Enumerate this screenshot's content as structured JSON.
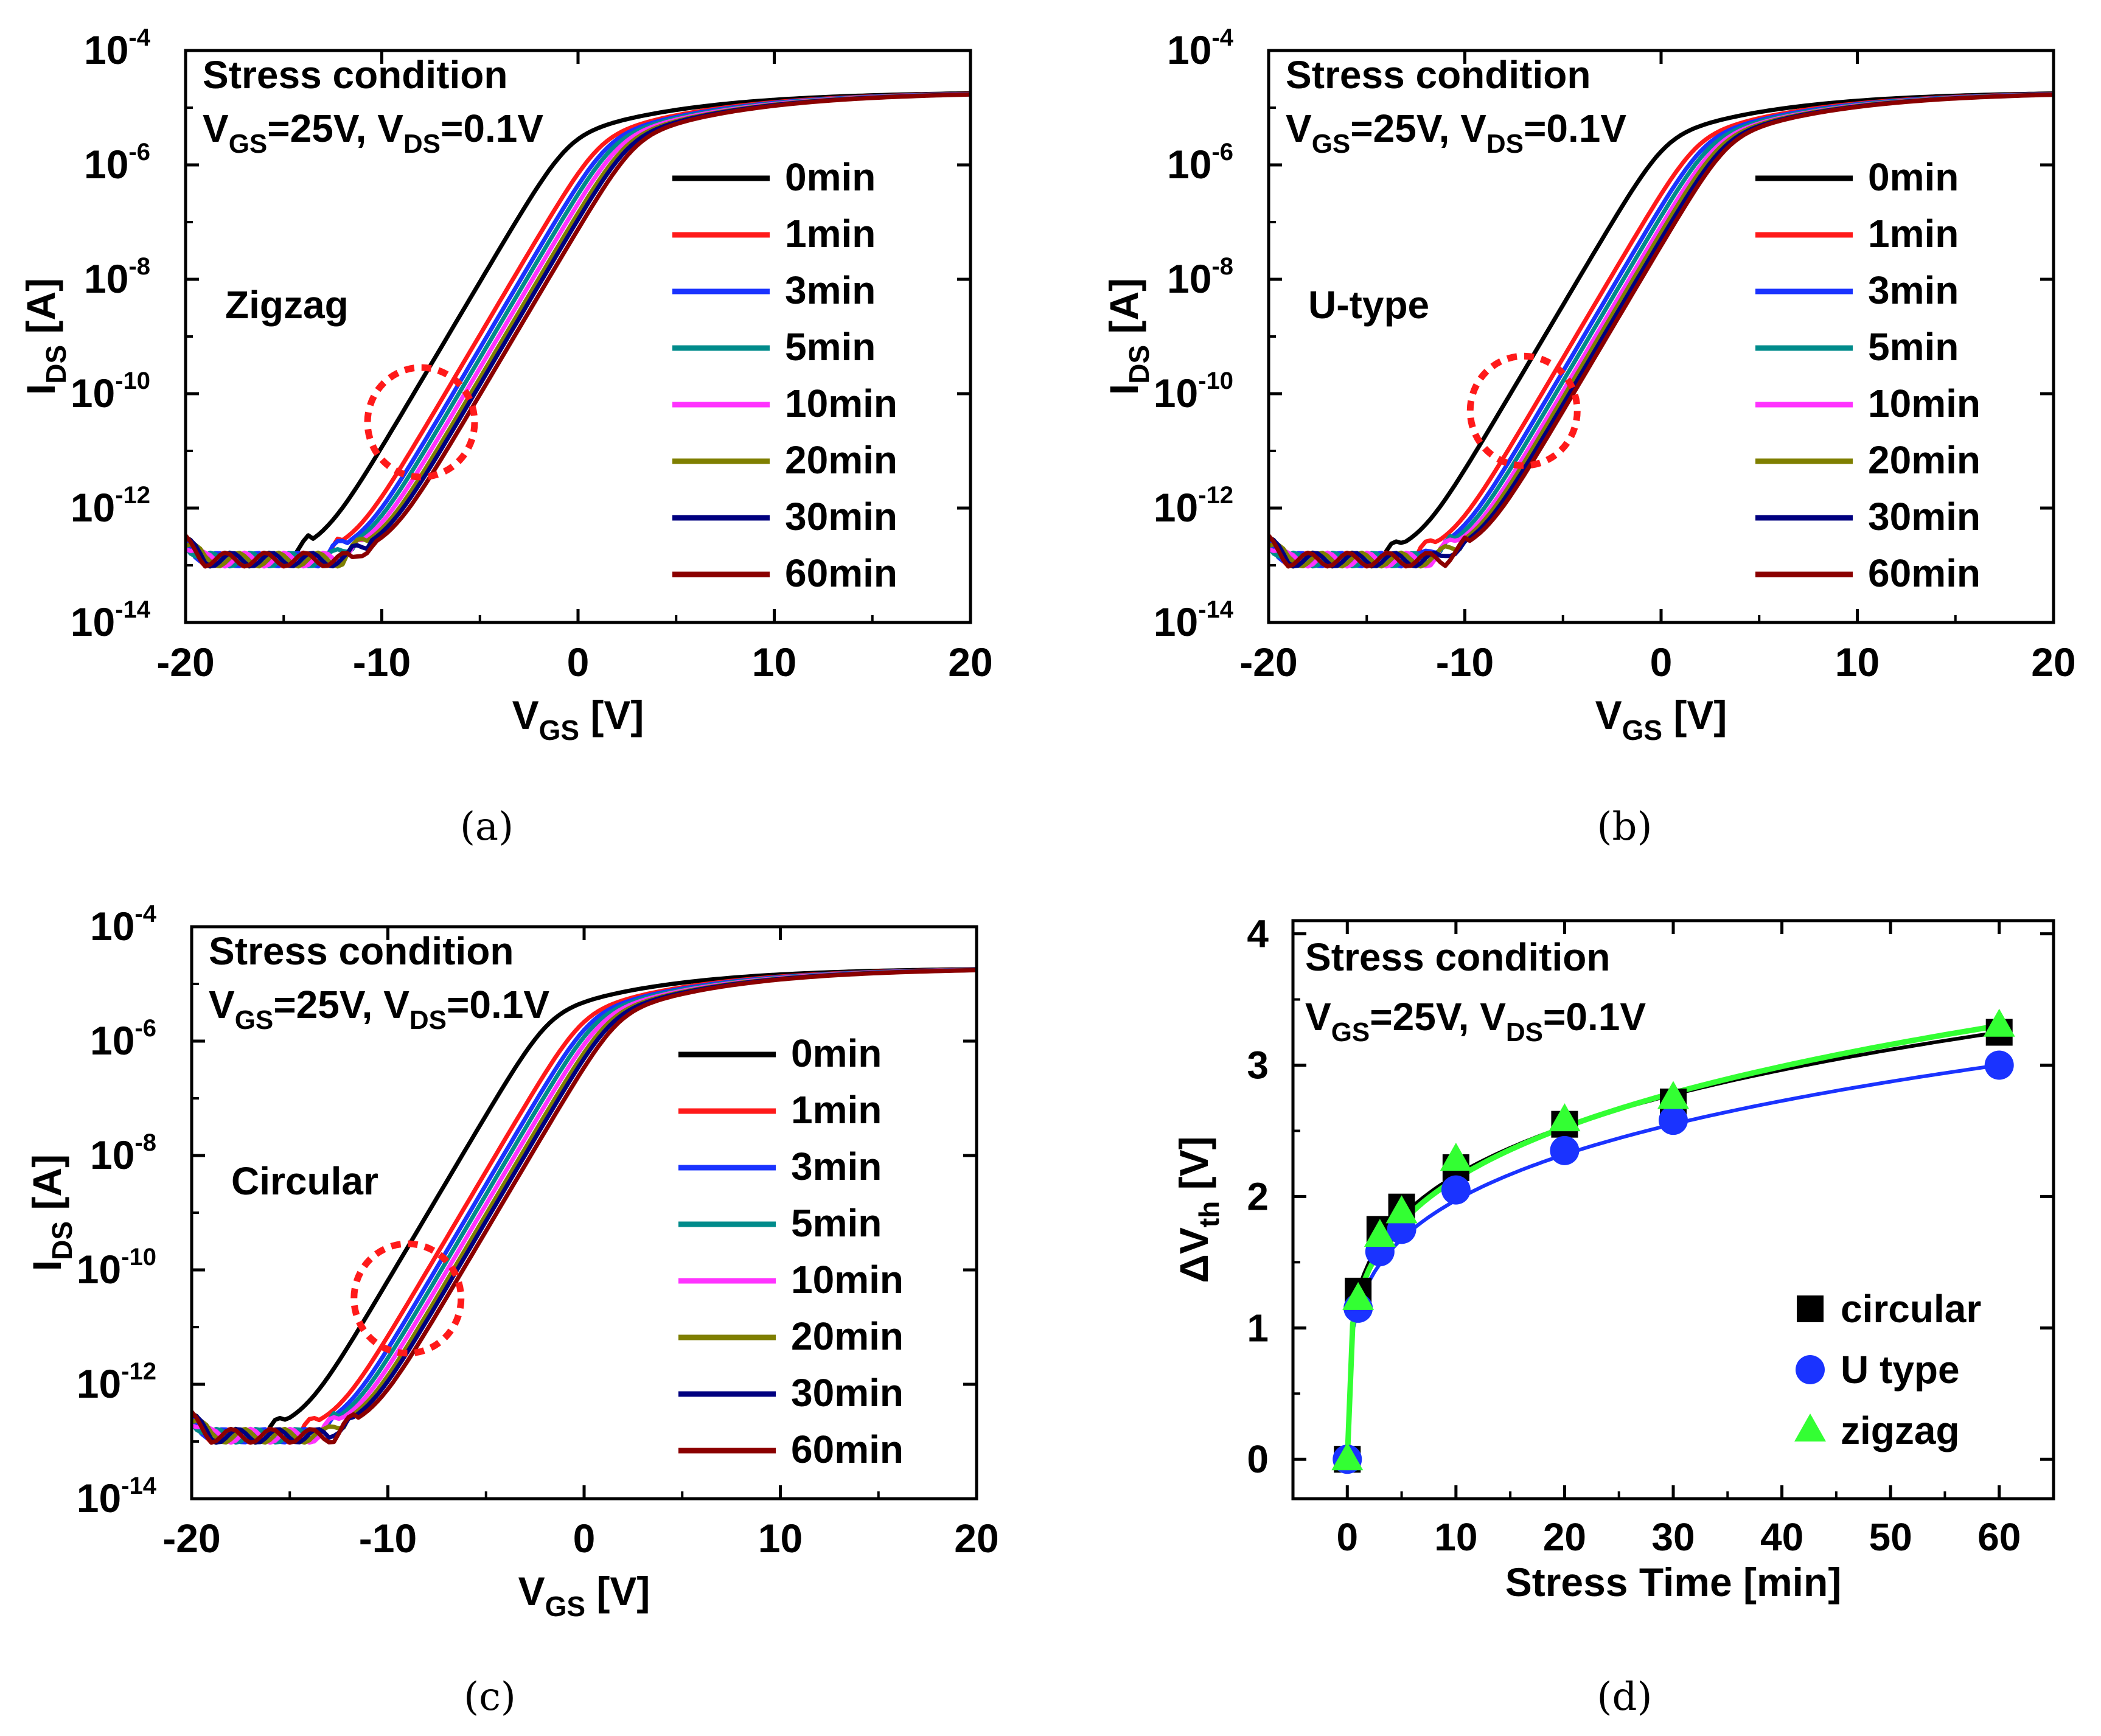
{
  "chart_data": [
    {
      "id": "a",
      "type": "line",
      "caption": "(a)",
      "panel_label": "Zigzag",
      "annotation": {
        "line1": "Stress condition",
        "line2": [
          "V",
          "GS",
          "=25V, V",
          "DS",
          "=0.1V"
        ]
      },
      "xlabel": {
        "main": "V",
        "sub": "GS",
        "tail": " [V]"
      },
      "ylabel": {
        "main": "I",
        "sub": "DS",
        "tail": " [A]"
      },
      "xlim": [
        -20,
        20
      ],
      "xticks": [
        "-20",
        "-10",
        "0",
        "10",
        "20"
      ],
      "ylim_log10": [
        -14,
        -4
      ],
      "yticks": [
        {
          "base": "10",
          "exp": "-14"
        },
        {
          "base": "10",
          "exp": "-12"
        },
        {
          "base": "10",
          "exp": "-10"
        },
        {
          "base": "10",
          "exp": "-8"
        },
        {
          "base": "10",
          "exp": "-6"
        },
        {
          "base": "10",
          "exp": "-4"
        }
      ],
      "highlight_v_at": -8,
      "highlight_log_at": -10.5,
      "series": [
        {
          "name": "0min",
          "color": "#000000",
          "v_on": -13.2
        },
        {
          "name": "1min",
          "color": "#ff1a1a",
          "v_on": -11.6
        },
        {
          "name": "3min",
          "color": "#1a33ff",
          "v_on": -11.2
        },
        {
          "name": "5min",
          "color": "#008b8b",
          "v_on": -10.9
        },
        {
          "name": "10min",
          "color": "#ff33ff",
          "v_on": -10.6
        },
        {
          "name": "20min",
          "color": "#7f7f00",
          "v_on": -10.3
        },
        {
          "name": "30min",
          "color": "#00007f",
          "v_on": -10.1
        },
        {
          "name": "60min",
          "color": "#8b0000",
          "v_on": -9.8
        }
      ]
    },
    {
      "id": "b",
      "type": "line",
      "caption": "(b)",
      "panel_label": "U-type",
      "annotation": {
        "line1": "Stress condition",
        "line2": [
          "V",
          "GS",
          "=25V, V",
          "DS",
          "=0.1V"
        ]
      },
      "xlabel": {
        "main": "V",
        "sub": "GS",
        "tail": " [V]"
      },
      "ylabel": {
        "main": "I",
        "sub": "DS",
        "tail": " [A]"
      },
      "xlim": [
        -20,
        20
      ],
      "xticks": [
        "-20",
        "-10",
        "0",
        "10",
        "20"
      ],
      "ylim_log10": [
        -14,
        -4
      ],
      "yticks": [
        {
          "base": "10",
          "exp": "-14"
        },
        {
          "base": "10",
          "exp": "-12"
        },
        {
          "base": "10",
          "exp": "-10"
        },
        {
          "base": "10",
          "exp": "-8"
        },
        {
          "base": "10",
          "exp": "-6"
        },
        {
          "base": "10",
          "exp": "-4"
        }
      ],
      "highlight_v_at": -7,
      "highlight_log_at": -10.3,
      "series": [
        {
          "name": "0min",
          "color": "#000000",
          "v_on": -12.5
        },
        {
          "name": "1min",
          "color": "#ff1a1a",
          "v_on": -10.9
        },
        {
          "name": "3min",
          "color": "#1a33ff",
          "v_on": -10.5
        },
        {
          "name": "5min",
          "color": "#008b8b",
          "v_on": -10.2
        },
        {
          "name": "10min",
          "color": "#ff33ff",
          "v_on": -9.9
        },
        {
          "name": "20min",
          "color": "#7f7f00",
          "v_on": -9.7
        },
        {
          "name": "30min",
          "color": "#00007f",
          "v_on": -9.5
        },
        {
          "name": "60min",
          "color": "#8b0000",
          "v_on": -9.3
        }
      ]
    },
    {
      "id": "c",
      "type": "line",
      "caption": "(c)",
      "panel_label": "Circular",
      "annotation": {
        "line1": "Stress condition",
        "line2": [
          "V",
          "GS",
          "=25V, V",
          "DS",
          "=0.1V"
        ]
      },
      "xlabel": {
        "main": "V",
        "sub": "GS",
        "tail": " [V]"
      },
      "ylabel": {
        "main": "I",
        "sub": "DS",
        "tail": " [A]"
      },
      "xlim": [
        -20,
        20
      ],
      "xticks": [
        "-20",
        "-10",
        "0",
        "10",
        "20"
      ],
      "ylim_log10": [
        -14,
        -4
      ],
      "yticks": [
        {
          "base": "10",
          "exp": "-14"
        },
        {
          "base": "10",
          "exp": "-12"
        },
        {
          "base": "10",
          "exp": "-10"
        },
        {
          "base": "10",
          "exp": "-8"
        },
        {
          "base": "10",
          "exp": "-6"
        },
        {
          "base": "10",
          "exp": "-4"
        }
      ],
      "highlight_v_at": -9,
      "highlight_log_at": -10.5,
      "series": [
        {
          "name": "0min",
          "color": "#000000",
          "v_on": -14.5
        },
        {
          "name": "1min",
          "color": "#ff1a1a",
          "v_on": -12.8
        },
        {
          "name": "3min",
          "color": "#1a33ff",
          "v_on": -12.4
        },
        {
          "name": "5min",
          "color": "#008b8b",
          "v_on": -12.1
        },
        {
          "name": "10min",
          "color": "#ff33ff",
          "v_on": -11.8
        },
        {
          "name": "20min",
          "color": "#7f7f00",
          "v_on": -11.5
        },
        {
          "name": "30min",
          "color": "#00007f",
          "v_on": -11.3
        },
        {
          "name": "60min",
          "color": "#8b0000",
          "v_on": -11.0
        }
      ]
    },
    {
      "id": "d",
      "type": "scatter",
      "caption": "(d)",
      "annotation": {
        "line1": "Stress condition",
        "line2": [
          "V",
          "GS",
          "=25V, V",
          "DS",
          "=0.1V"
        ]
      },
      "xlabel": {
        "main": "Stress Time [min]"
      },
      "ylabel": {
        "main": "ΔV",
        "sub": "th",
        "tail": " [V]"
      },
      "xlim": [
        -5,
        65
      ],
      "ylim": [
        -0.3,
        4.1
      ],
      "xticks": [
        "0",
        "10",
        "20",
        "30",
        "40",
        "50",
        "60"
      ],
      "yticks": [
        "0",
        "1",
        "2",
        "3",
        "4"
      ],
      "x": [
        0,
        1,
        3,
        5,
        10,
        20,
        30,
        60
      ],
      "series": [
        {
          "name": "circular",
          "marker": "square",
          "color": "#000000",
          "line_color": "#000000",
          "values": [
            0,
            1.28,
            1.75,
            1.92,
            2.22,
            2.55,
            2.72,
            3.25
          ]
        },
        {
          "name": "U type",
          "marker": "circle",
          "color": "#1a33ff",
          "line_color": "#1a33ff",
          "values": [
            0,
            1.15,
            1.58,
            1.75,
            2.05,
            2.35,
            2.58,
            3.0
          ]
        },
        {
          "name": "zigzag",
          "marker": "triangle",
          "color": "#33ff33",
          "line_color": "#33ff33",
          "values": [
            0,
            1.22,
            1.7,
            1.88,
            2.28,
            2.58,
            2.75,
            3.3
          ]
        }
      ]
    }
  ]
}
